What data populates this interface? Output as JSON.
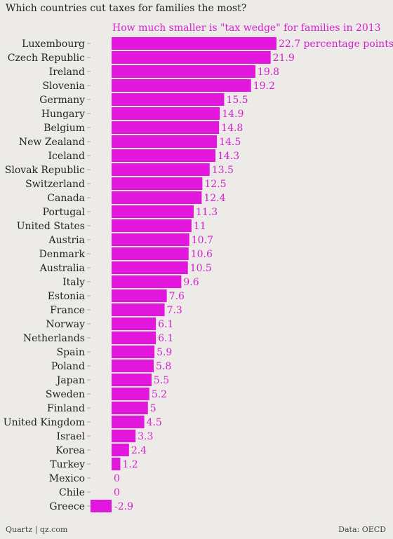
{
  "title": "Which countries cut taxes for families the most?",
  "footer": {
    "source": "Quartz | qz.com",
    "data": "Data: OECD"
  },
  "colors": {
    "bar": "#e216dc",
    "label": "#d61fd0",
    "background": "#ecebe8",
    "text": "#222222"
  },
  "chart_data": {
    "type": "bar",
    "orientation": "horizontal",
    "subtitle": "How much smaller is \"tax wedge\" for families in 2013",
    "value_suffix_first": " percentage points",
    "categories": [
      "Luxembourg",
      "Czech Republic",
      "Ireland",
      "Slovenia",
      "Germany",
      "Hungary",
      "Belgium",
      "New Zealand",
      "Iceland",
      "Slovak Republic",
      "Switzerland",
      "Canada",
      "Portugal",
      "United States",
      "Austria",
      "Denmark",
      "Australia",
      "Italy",
      "Estonia",
      "France",
      "Norway",
      "Netherlands",
      "Spain",
      "Poland",
      "Japan",
      "Sweden",
      "Finland",
      "United Kingdom",
      "Israel",
      "Korea",
      "Turkey",
      "Mexico",
      "Chile",
      "Greece"
    ],
    "values": [
      22.7,
      21.9,
      19.8,
      19.2,
      15.5,
      14.9,
      14.8,
      14.5,
      14.3,
      13.5,
      12.5,
      12.4,
      11.3,
      11,
      10.7,
      10.6,
      10.5,
      9.6,
      7.6,
      7.3,
      6.1,
      6.1,
      5.9,
      5.8,
      5.5,
      5.2,
      5,
      4.5,
      3.3,
      2.4,
      1.2,
      0,
      0,
      -2.9
    ],
    "value_labels": [
      "22.7",
      "21.9",
      "19.8",
      "19.2",
      "15.5",
      "14.9",
      "14.8",
      "14.5",
      "14.3",
      "13.5",
      "12.5",
      "12.4",
      "11.3",
      "11",
      "10.7",
      "10.6",
      "10.5",
      "9.6",
      "7.6",
      "7.3",
      "6.1",
      "6.1",
      "5.9",
      "5.8",
      "5.5",
      "5.2",
      "5",
      "4.5",
      "3.3",
      "2.4",
      "1.2",
      "0",
      "0",
      "-2.9"
    ],
    "xlim": [
      -2.9,
      22.7
    ],
    "grid": false,
    "legend": false
  }
}
